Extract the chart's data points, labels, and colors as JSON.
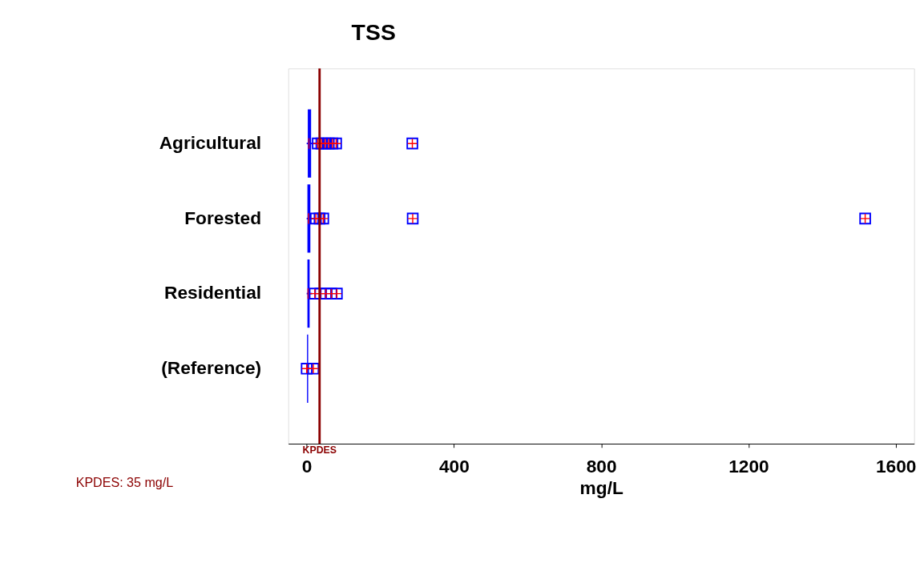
{
  "chart_data": {
    "type": "box",
    "orientation": "horizontal",
    "title": "TSS",
    "xlabel": "mg/L",
    "categories": [
      "Agricultural",
      "Forested",
      "Residential",
      "(Reference)"
    ],
    "series": [
      {
        "color": "#0000ff",
        "boxes": [
          {
            "low": 0,
            "q1": 3,
            "median": 6,
            "q3": 12,
            "high": 25,
            "outliers": [
              30,
              40,
              50,
              60,
              70,
              80,
              287
            ]
          },
          {
            "low": 0,
            "q1": 2,
            "median": 5,
            "q3": 10,
            "high": 20,
            "outliers": [
              25,
              35,
              45,
              288,
              1517
            ]
          },
          {
            "low": 0,
            "q1": 2,
            "median": 4,
            "q3": 8,
            "high": 15,
            "outliers": [
              22,
              37,
              52,
              67,
              82
            ]
          },
          {
            "low": 0,
            "q1": 1,
            "median": 2,
            "q3": 4,
            "high": 8,
            "outliers": [
              0,
              18
            ]
          }
        ]
      }
    ],
    "xlim": [
      -50,
      1650
    ],
    "xticks": [
      0,
      400,
      800,
      1200,
      1600
    ],
    "grid": false,
    "legend": false,
    "ref_lines": [
      {
        "axis": "x",
        "value": 35,
        "label": "KPDES",
        "color": "#8b0000"
      }
    ],
    "annotations": [
      "KPDES: 35 mg/L"
    ]
  }
}
